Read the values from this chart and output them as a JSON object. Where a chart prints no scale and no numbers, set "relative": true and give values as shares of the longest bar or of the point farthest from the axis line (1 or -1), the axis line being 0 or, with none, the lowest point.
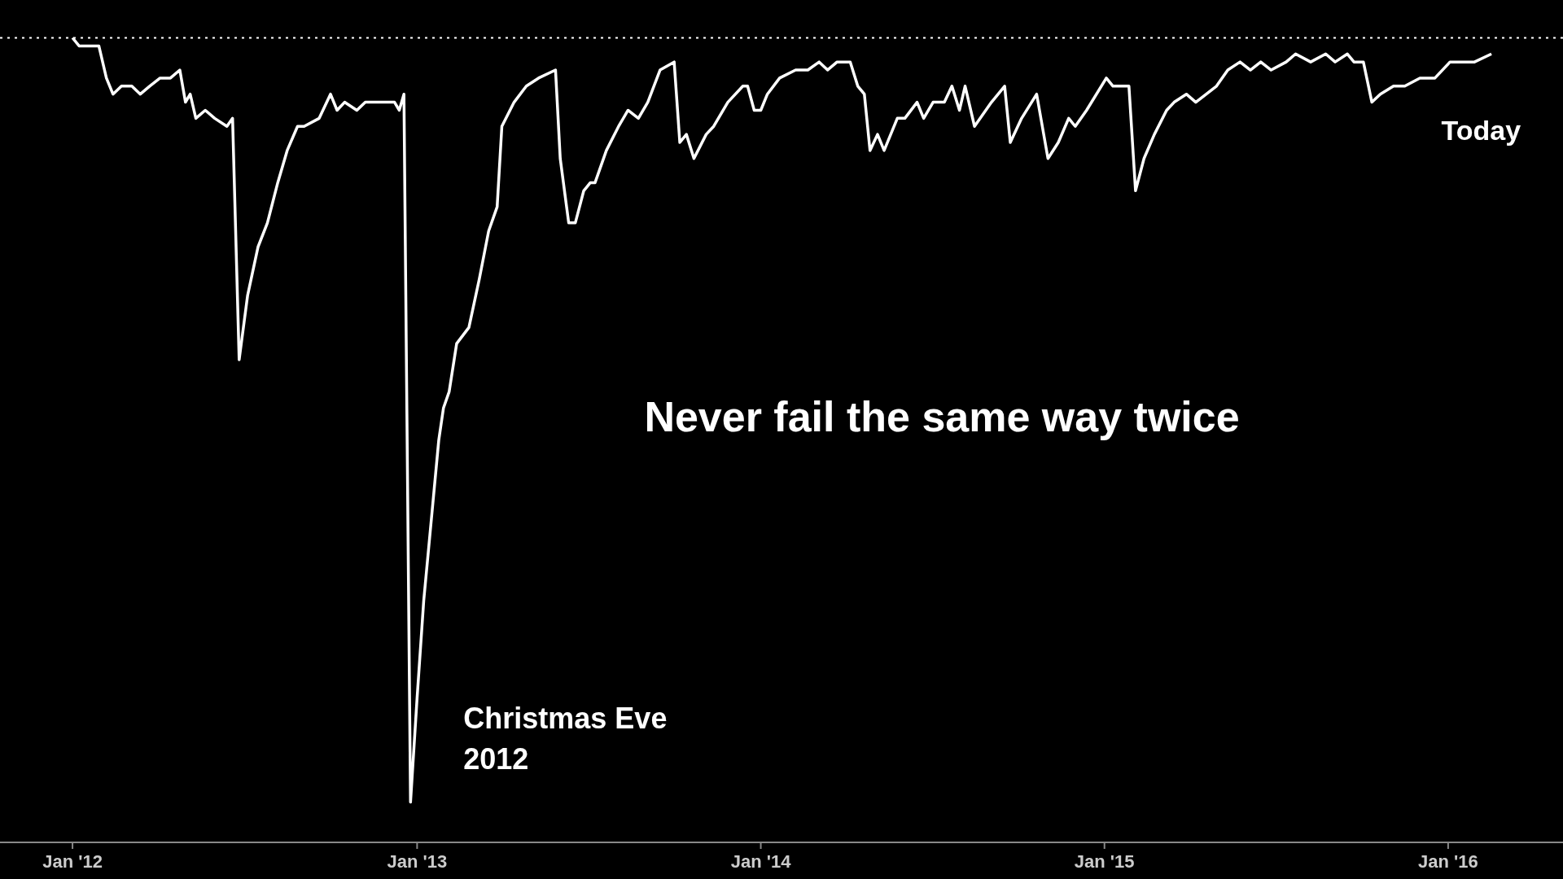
{
  "chart_data": {
    "type": "line",
    "relative": true,
    "xlim": [
      "2011-10-16",
      "2016-05-02"
    ],
    "xticks": [
      {
        "value": "2012-01-01",
        "label": "Jan '12"
      },
      {
        "value": "2013-01-01",
        "label": "Jan '13"
      },
      {
        "value": "2014-01-01",
        "label": "Jan '14"
      },
      {
        "value": "2015-01-01",
        "label": "Jan '15"
      },
      {
        "value": "2016-01-01",
        "label": "Jan '16"
      }
    ],
    "x": [
      "2012-01-01",
      "2012-01-08",
      "2012-01-19",
      "2012-01-29",
      "2012-02-06",
      "2012-02-13",
      "2012-02-22",
      "2012-03-04",
      "2012-03-13",
      "2012-03-23",
      "2012-04-03",
      "2012-04-14",
      "2012-04-24",
      "2012-04-30",
      "2012-05-05",
      "2012-05-11",
      "2012-05-21",
      "2012-05-31",
      "2012-06-13",
      "2012-06-19",
      "2012-06-26",
      "2012-07-05",
      "2012-07-16",
      "2012-07-26",
      "2012-08-06",
      "2012-08-16",
      "2012-08-27",
      "2012-09-03",
      "2012-09-19",
      "2012-10-01",
      "2012-10-08",
      "2012-10-16",
      "2012-10-29",
      "2012-11-07",
      "2012-11-22",
      "2012-12-08",
      "2012-12-13",
      "2012-12-18",
      "2012-12-25",
      "2013-01-01",
      "2013-01-08",
      "2013-01-16",
      "2013-01-24",
      "2013-01-29",
      "2013-02-04",
      "2013-02-12",
      "2013-02-25",
      "2013-03-08",
      "2013-03-18",
      "2013-03-27",
      "2013-04-01",
      "2013-04-14",
      "2013-04-27",
      "2013-05-10",
      "2013-05-28",
      "2013-06-02",
      "2013-06-11",
      "2013-06-18",
      "2013-06-27",
      "2013-07-04",
      "2013-07-09",
      "2013-07-21",
      "2013-08-03",
      "2013-08-13",
      "2013-08-24",
      "2013-09-03",
      "2013-09-16",
      "2013-10-01",
      "2013-10-07",
      "2013-10-14",
      "2013-10-22",
      "2013-11-04",
      "2013-11-12",
      "2013-11-27",
      "2013-12-13",
      "2013-12-18",
      "2013-12-25",
      "2014-01-01",
      "2014-01-08",
      "2014-01-21",
      "2014-02-07",
      "2014-02-20",
      "2014-03-04",
      "2014-03-13",
      "2014-03-23",
      "2014-04-06",
      "2014-04-14",
      "2014-04-21",
      "2014-04-27",
      "2014-05-05",
      "2014-05-12",
      "2014-05-26",
      "2014-06-03",
      "2014-06-16",
      "2014-06-23",
      "2014-07-03",
      "2014-07-15",
      "2014-07-23",
      "2014-07-31",
      "2014-08-06",
      "2014-08-16",
      "2014-09-03",
      "2014-09-17",
      "2014-09-23",
      "2014-10-05",
      "2014-10-21",
      "2014-11-02",
      "2014-11-13",
      "2014-11-24",
      "2014-12-01",
      "2014-12-13",
      "2015-01-03",
      "2015-01-10",
      "2015-01-27",
      "2015-02-03",
      "2015-02-12",
      "2015-02-23",
      "2015-03-08",
      "2015-03-16",
      "2015-03-29",
      "2015-04-08",
      "2015-04-30",
      "2015-05-12",
      "2015-05-25",
      "2015-06-05",
      "2015-06-16",
      "2015-06-27",
      "2015-07-13",
      "2015-07-23",
      "2015-08-08",
      "2015-08-24",
      "2015-09-03",
      "2015-09-16",
      "2015-09-23",
      "2015-10-03",
      "2015-10-12",
      "2015-10-21",
      "2015-11-04",
      "2015-11-16",
      "2015-12-02",
      "2015-12-18",
      "2016-01-03",
      "2016-01-19",
      "2016-01-29",
      "2016-02-16"
    ],
    "series": [
      {
        "color": "#ffffff",
        "values": [
          1.0,
          0.99,
          0.99,
          0.99,
          0.95,
          0.93,
          0.94,
          0.94,
          0.93,
          0.94,
          0.95,
          0.95,
          0.96,
          0.92,
          0.93,
          0.9,
          0.91,
          0.9,
          0.89,
          0.9,
          0.6,
          0.68,
          0.74,
          0.77,
          0.82,
          0.86,
          0.89,
          0.89,
          0.9,
          0.93,
          0.91,
          0.92,
          0.91,
          0.92,
          0.92,
          0.92,
          0.91,
          0.93,
          0.05,
          0.18,
          0.3,
          0.4,
          0.5,
          0.54,
          0.56,
          0.62,
          0.64,
          0.7,
          0.76,
          0.79,
          0.89,
          0.92,
          0.94,
          0.95,
          0.96,
          0.85,
          0.77,
          0.77,
          0.81,
          0.82,
          0.82,
          0.86,
          0.89,
          0.91,
          0.9,
          0.92,
          0.96,
          0.97,
          0.87,
          0.88,
          0.85,
          0.88,
          0.89,
          0.92,
          0.94,
          0.94,
          0.91,
          0.91,
          0.93,
          0.95,
          0.96,
          0.96,
          0.97,
          0.96,
          0.97,
          0.97,
          0.94,
          0.93,
          0.86,
          0.88,
          0.86,
          0.9,
          0.9,
          0.92,
          0.9,
          0.92,
          0.92,
          0.94,
          0.91,
          0.94,
          0.89,
          0.92,
          0.94,
          0.87,
          0.9,
          0.93,
          0.85,
          0.87,
          0.9,
          0.89,
          0.91,
          0.95,
          0.94,
          0.94,
          0.81,
          0.85,
          0.88,
          0.91,
          0.92,
          0.93,
          0.92,
          0.94,
          0.96,
          0.97,
          0.96,
          0.97,
          0.96,
          0.97,
          0.98,
          0.97,
          0.98,
          0.97,
          0.98,
          0.97,
          0.97,
          0.92,
          0.93,
          0.94,
          0.94,
          0.95,
          0.95,
          0.97,
          0.97,
          0.97,
          0.98
        ]
      }
    ],
    "ref_lines": [
      {
        "axis": "y",
        "value": 1,
        "color": "#ffffff",
        "line_style": "dotted"
      }
    ],
    "annotations": [
      "Never fail the same way twice",
      {
        "text": "Christmas Eve\n2012",
        "x": "2012-12-25",
        "y": 0.05
      },
      {
        "text": "Today",
        "x": "2016-02-16",
        "y": 0.98
      }
    ]
  }
}
